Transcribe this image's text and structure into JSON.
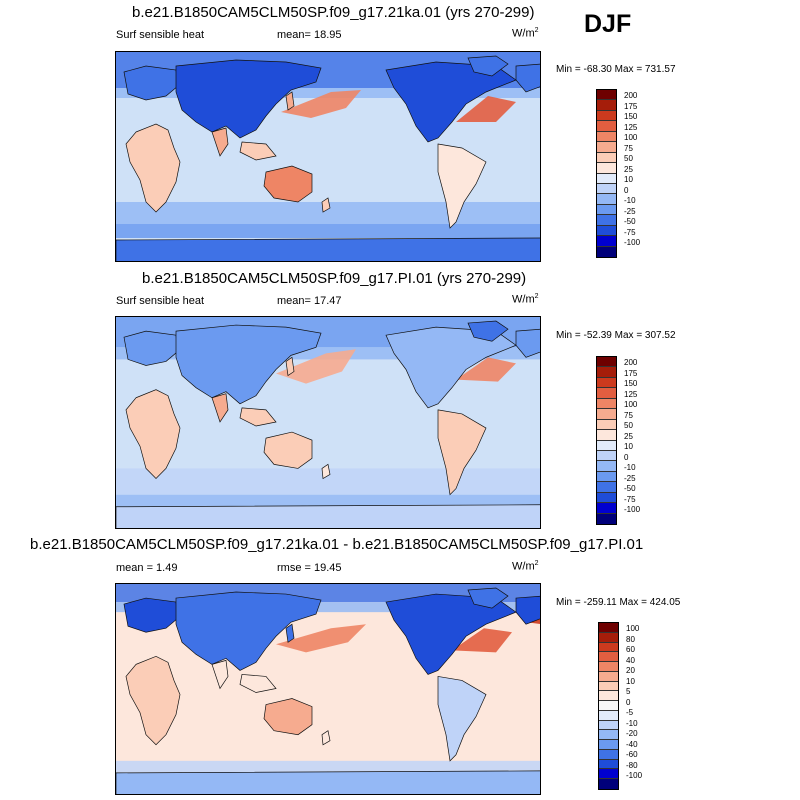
{
  "season": "DJF",
  "colors": {
    "abs_scale": [
      "#00007a",
      "#0000cf",
      "#1f4dd8",
      "#3f72e6",
      "#6b9af0",
      "#94b8f5",
      "#bfd3f8",
      "#e2ebfa",
      "#fde7dc",
      "#fbcdb7",
      "#f6ab8f",
      "#ee8565",
      "#e25e40",
      "#cc3a1e",
      "#a51d0a",
      "#6e0000"
    ],
    "diff_scale": [
      "#00007a",
      "#0000cf",
      "#1f4dd8",
      "#3f72e6",
      "#6b9af0",
      "#94b8f5",
      "#bfd3f8",
      "#e2ebfa",
      "#f7f7f7",
      "#fde7dc",
      "#fbcdb7",
      "#f6ab8f",
      "#ee8565",
      "#e25e40",
      "#cc3a1e",
      "#a51d0a",
      "#6e0000"
    ]
  },
  "panels": [
    {
      "title": "b.e21.B1850CAM5CLM50SP.f09_g17.21ka.01 (yrs 270-299)",
      "left_label": "Surf sensible heat",
      "mid_label": "mean=  18.95",
      "units": "W/m",
      "units_sup": "2",
      "minmax": "Min = -68.30 Max = 731.57",
      "cbar_labels": [
        "200",
        "175",
        "150",
        "125",
        "100",
        "75",
        "50",
        "25",
        "10",
        "0",
        "-10",
        "-25",
        "-50",
        "-75",
        "-100"
      ]
    },
    {
      "title": "b.e21.B1850CAM5CLM50SP.f09_g17.PI.01 (yrs 270-299)",
      "left_label": "Surf sensible heat",
      "mid_label": "mean=  17.47",
      "units": "W/m",
      "units_sup": "2",
      "minmax": "Min = -52.39 Max = 307.52",
      "cbar_labels": [
        "200",
        "175",
        "150",
        "125",
        "100",
        "75",
        "50",
        "25",
        "10",
        "0",
        "-10",
        "-25",
        "-50",
        "-75",
        "-100"
      ]
    },
    {
      "title": "b.e21.B1850CAM5CLM50SP.f09_g17.21ka.01 - b.e21.B1850CAM5CLM50SP.f09_g17.PI.01",
      "left_label": "mean =   1.49",
      "mid_label": "rmse =  19.45",
      "units": "W/m",
      "units_sup": "2",
      "minmax": "Min = -259.11 Max = 424.05",
      "cbar_labels": [
        "100",
        "80",
        "60",
        "40",
        "20",
        "10",
        "5",
        "0",
        "-5",
        "-10",
        "-20",
        "-40",
        "-60",
        "-80",
        "-100"
      ]
    }
  ]
}
